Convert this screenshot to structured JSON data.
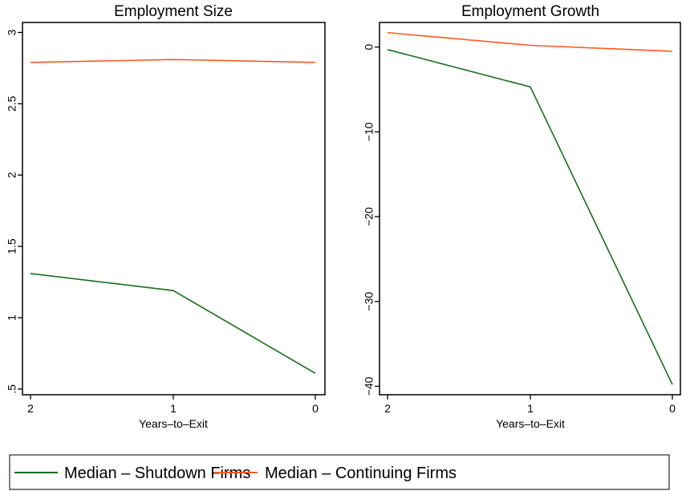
{
  "chart_data": [
    {
      "type": "line",
      "title": "Employment Size",
      "xlabel": "Years–to–Exit",
      "ylabel": "",
      "x": [
        2,
        1,
        0
      ],
      "x_tick_labels": [
        "2",
        "1",
        "0"
      ],
      "x_reversed": true,
      "y_ticks": [
        0.5,
        1,
        1.5,
        2,
        2.5,
        3
      ],
      "y_tick_labels": [
        ".5",
        "1",
        "1.5",
        "2",
        "2.5",
        "3"
      ],
      "ylim": [
        0.46,
        3.07
      ],
      "grid": false,
      "series": [
        {
          "name": "Median – Shutdown Firms",
          "color": "#1a6e1a",
          "values": [
            1.31,
            1.19,
            0.61
          ]
        },
        {
          "name": "Median – Continuing Firms",
          "color": "#ff5a1f",
          "values": [
            2.79,
            2.81,
            2.79
          ]
        }
      ]
    },
    {
      "type": "line",
      "title": "Employment Growth",
      "xlabel": "Years–to–Exit",
      "ylabel": "",
      "x": [
        2,
        1,
        0
      ],
      "x_tick_labels": [
        "2",
        "1",
        "0"
      ],
      "x_reversed": true,
      "y_ticks": [
        -40,
        -30,
        -20,
        -10,
        0
      ],
      "y_tick_labels": [
        "−40",
        "−30",
        "−20",
        "−10",
        "0"
      ],
      "ylim": [
        -41,
        2.9
      ],
      "grid": false,
      "series": [
        {
          "name": "Median – Shutdown Firms",
          "color": "#1a6e1a",
          "values": [
            -0.3,
            -4.7,
            -39.8
          ]
        },
        {
          "name": "Median – Continuing Firms",
          "color": "#ff5a1f",
          "values": [
            1.7,
            0.2,
            -0.5
          ]
        }
      ]
    }
  ],
  "legend": {
    "position": "bottom",
    "items": [
      {
        "label": "Median – Shutdown Firms",
        "color": "#1a6e1a"
      },
      {
        "label": "Median – Continuing Firms",
        "color": "#ff5a1f"
      }
    ]
  }
}
